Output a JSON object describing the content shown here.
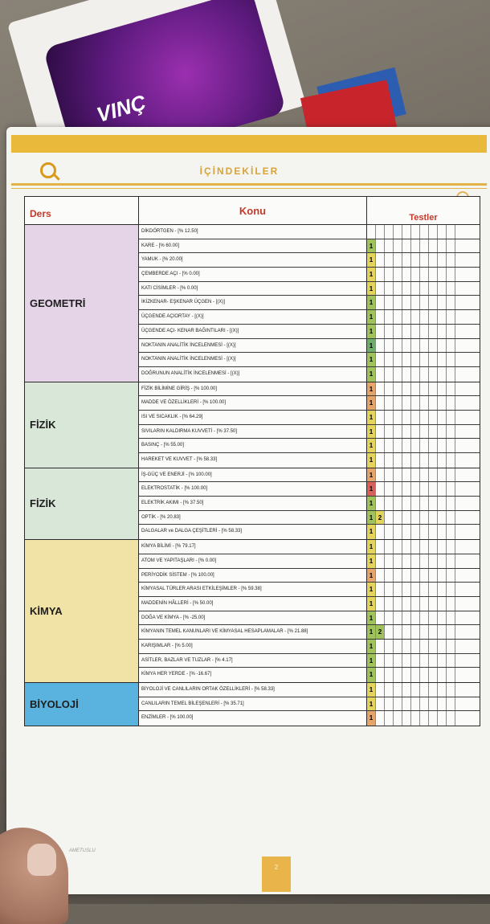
{
  "scene": {
    "cover_text": "VINÇ",
    "heading": "İÇİNDEKİLER",
    "page_number": "2",
    "footer_brand": "AMETUSLU"
  },
  "table": {
    "headers": {
      "ders": "Ders",
      "konu": "Konu",
      "testler": "Testler"
    },
    "groups": [
      {
        "subject": "GEOMETRİ",
        "color": "#e5d3e8",
        "rows": [
          {
            "topic": "DİKDÖRTGEN - [% 12.50]",
            "tests": []
          },
          {
            "topic": "KARE - [% 60.00]",
            "tests": [
              {
                "label": "1",
                "color": "#9fc25a"
              }
            ]
          },
          {
            "topic": "YAMUK - [% 20.00]",
            "tests": [
              {
                "label": "1",
                "color": "#e3d45b"
              }
            ]
          },
          {
            "topic": "ÇEMBERDE AÇI - [% 0.00]",
            "tests": [
              {
                "label": "1",
                "color": "#e3d45b"
              }
            ]
          },
          {
            "topic": "KATI CİSİMLER - [% 0.00]",
            "tests": [
              {
                "label": "1",
                "color": "#e3d45b"
              }
            ]
          },
          {
            "topic": "İKİZKENAR- EŞKENAR ÜÇGEN - [(X)]",
            "tests": [
              {
                "label": "1",
                "color": "#9fc25a"
              }
            ]
          },
          {
            "topic": "ÜÇGENDE AÇIORTAY - [(X)]",
            "tests": [
              {
                "label": "1",
                "color": "#9fc25a"
              }
            ]
          },
          {
            "topic": "ÜÇGENDE AÇI- KENAR BAĞINTILARI - [(X)]",
            "tests": [
              {
                "label": "1",
                "color": "#9fc25a"
              }
            ]
          },
          {
            "topic": "NOKTANIN ANALİTİK İNCELENMESİ - [(X)]",
            "tests": [
              {
                "label": "1",
                "color": "#6fae6a"
              }
            ]
          },
          {
            "topic": "NOKTANIN ANALİTİK İNCELENMESİ - [(X)]",
            "tests": [
              {
                "label": "1",
                "color": "#9fc25a"
              }
            ]
          },
          {
            "topic": "DOĞRUNUN ANALİTİK İNCELENMESİ - [(X)]",
            "tests": [
              {
                "label": "1",
                "color": "#9fc25a"
              }
            ]
          }
        ]
      },
      {
        "subject": "FİZİK",
        "color": "#d9e7d8",
        "rows": [
          {
            "topic": "FİZİK BİLİMİNE GİRİŞ - [% 100.00]",
            "tests": [
              {
                "label": "1",
                "color": "#e6a36a"
              }
            ]
          },
          {
            "topic": "MADDE VE ÖZELLİKLERİ - [% 100.00]",
            "tests": [
              {
                "label": "1",
                "color": "#e6a36a"
              }
            ]
          },
          {
            "topic": "ISI VE SICAKLIK - [% 64.29]",
            "tests": [
              {
                "label": "1",
                "color": "#e3d45b"
              }
            ]
          },
          {
            "topic": "SIVILARIN KALDIRMA KUVVETİ - [% 37.50]",
            "tests": [
              {
                "label": "1",
                "color": "#e3d45b"
              }
            ]
          },
          {
            "topic": "BASINÇ - [% 55.00]",
            "tests": [
              {
                "label": "1",
                "color": "#e3d45b"
              }
            ]
          },
          {
            "topic": "HAREKET VE KUVVET - [% 58.33]",
            "tests": [
              {
                "label": "1",
                "color": "#e3d45b"
              }
            ]
          }
        ]
      },
      {
        "subject": "FİZİK",
        "color": "#d9e7d8",
        "rows": [
          {
            "topic": "İŞ-GÜÇ VE ENERJİ - [% 100.00]",
            "tests": [
              {
                "label": "1",
                "color": "#e6a36a"
              }
            ]
          },
          {
            "topic": "ELEKTROSTATİK - [% 100.00]",
            "tests": [
              {
                "label": "1",
                "color": "#d9605a"
              }
            ]
          },
          {
            "topic": "ELEKTRİK AKIMI - [% 37.50]",
            "tests": [
              {
                "label": "1",
                "color": "#9fc25a"
              }
            ]
          },
          {
            "topic": "OPTİK - [% 20.83]",
            "tests": [
              {
                "label": "1",
                "color": "#9fc25a"
              },
              {
                "label": "2",
                "color": "#e3d45b"
              }
            ]
          },
          {
            "topic": "DALGALAR ve DALGA ÇEŞİTLERİ - [% 58.33]",
            "tests": [
              {
                "label": "1",
                "color": "#e3d45b"
              }
            ]
          }
        ]
      },
      {
        "subject": "KİMYA",
        "color": "#f1e2a6",
        "rows": [
          {
            "topic": "KİMYA BİLİMİ - [% 79.17]",
            "tests": [
              {
                "label": "1",
                "color": "#e3d45b"
              }
            ]
          },
          {
            "topic": "ATOM VE YAPITAŞLARI - [% 0.00]",
            "tests": [
              {
                "label": "1",
                "color": "#e3d45b"
              }
            ]
          },
          {
            "topic": "PERİYODİK SİSTEM - [% 100.00]",
            "tests": [
              {
                "label": "1",
                "color": "#e6a36a"
              }
            ]
          },
          {
            "topic": "KİMYASAL TÜRLER ARASI ETKİLEŞİMLER - [% 59.38]",
            "tests": [
              {
                "label": "1",
                "color": "#e3d45b"
              }
            ]
          },
          {
            "topic": "MADDENİN HÂLLERİ - [% 50.00]",
            "tests": [
              {
                "label": "1",
                "color": "#e3d45b"
              }
            ]
          },
          {
            "topic": "DOĞA VE KİMYA - [% -25.00]",
            "tests": [
              {
                "label": "1",
                "color": "#9fc25a"
              }
            ]
          },
          {
            "topic": "KİMYANIN TEMEL KANUNLARI VE KİMYASAL HESAPLAMALAR - [% 21.88]",
            "tests": [
              {
                "label": "1",
                "color": "#9fc25a"
              },
              {
                "label": "2",
                "color": "#9fc25a"
              }
            ]
          },
          {
            "topic": "KARIŞIMLAR - [% 5.00]",
            "tests": [
              {
                "label": "1",
                "color": "#9fc25a"
              }
            ]
          },
          {
            "topic": "ASİTLER, BAZLAR VE TUZLAR - [% 4.17]",
            "tests": [
              {
                "label": "1",
                "color": "#9fc25a"
              }
            ]
          },
          {
            "topic": "KİMYA HER YERDE - [% -16.67]",
            "tests": [
              {
                "label": "1",
                "color": "#9fc25a"
              }
            ]
          }
        ]
      },
      {
        "subject": "BİYOLOJİ",
        "color": "#5ab3df",
        "rows": [
          {
            "topic": "BİYOLOJİ VE CANLILARIN ORTAK ÖZELLİKLERİ - [% 58.33]",
            "tests": [
              {
                "label": "1",
                "color": "#e3d45b"
              }
            ]
          },
          {
            "topic": "CANLILARIN TEMEL BİLEŞENLERİ - [% 35.71]",
            "tests": [
              {
                "label": "1",
                "color": "#e3d45b"
              }
            ]
          },
          {
            "topic": "ENZİMLER - [% 100.00]",
            "tests": [
              {
                "label": "1",
                "color": "#e6a36a"
              }
            ]
          }
        ]
      }
    ]
  }
}
